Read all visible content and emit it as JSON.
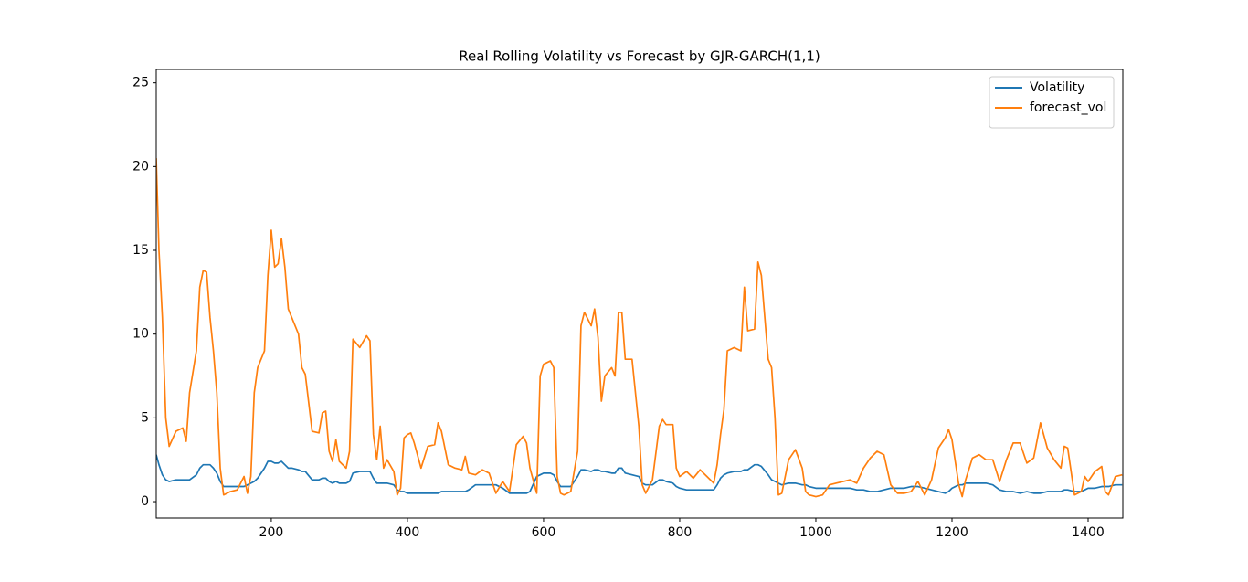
{
  "chart_data": {
    "type": "line",
    "title": "Real Rolling Volatility vs Forecast by GJR-GARCH(1,1)",
    "xlim": [
      31,
      1451
    ],
    "ylim": [
      -0.98,
      25.8
    ],
    "xticks": [
      200,
      400,
      600,
      800,
      1000,
      1200,
      1400
    ],
    "yticks": [
      0,
      5,
      10,
      15,
      20,
      25
    ],
    "legend": "upper right",
    "x": [
      31,
      35,
      40,
      45,
      50,
      60,
      70,
      75,
      80,
      90,
      95,
      100,
      105,
      110,
      115,
      120,
      125,
      130,
      140,
      150,
      160,
      165,
      170,
      175,
      180,
      190,
      195,
      200,
      205,
      210,
      215,
      220,
      225,
      230,
      240,
      245,
      250,
      260,
      270,
      275,
      280,
      285,
      290,
      295,
      300,
      310,
      315,
      320,
      330,
      340,
      345,
      350,
      355,
      360,
      365,
      370,
      380,
      385,
      390,
      395,
      400,
      405,
      410,
      420,
      430,
      440,
      445,
      450,
      460,
      470,
      480,
      485,
      490,
      500,
      510,
      520,
      530,
      540,
      550,
      560,
      570,
      575,
      580,
      590,
      595,
      600,
      610,
      615,
      620,
      625,
      630,
      640,
      650,
      655,
      660,
      670,
      675,
      680,
      685,
      690,
      700,
      705,
      710,
      715,
      720,
      730,
      740,
      745,
      750,
      760,
      770,
      775,
      780,
      790,
      795,
      800,
      810,
      820,
      830,
      840,
      850,
      855,
      860,
      865,
      870,
      880,
      890,
      895,
      900,
      910,
      915,
      920,
      930,
      935,
      940,
      945,
      950,
      960,
      965,
      970,
      980,
      985,
      990,
      1000,
      1010,
      1020,
      1030,
      1040,
      1050,
      1060,
      1070,
      1080,
      1090,
      1100,
      1110,
      1120,
      1130,
      1140,
      1150,
      1160,
      1170,
      1180,
      1190,
      1195,
      1200,
      1210,
      1215,
      1220,
      1230,
      1240,
      1250,
      1260,
      1270,
      1280,
      1290,
      1300,
      1310,
      1320,
      1330,
      1340,
      1350,
      1360,
      1365,
      1370,
      1380,
      1390,
      1395,
      1400,
      1410,
      1420,
      1425,
      1430,
      1440,
      1450
    ],
    "series": [
      {
        "name": "Volatility",
        "color": "#1f77b4",
        "values": [
          2.8,
          2.2,
          1.6,
          1.3,
          1.2,
          1.3,
          1.3,
          1.3,
          1.3,
          1.6,
          2.0,
          2.2,
          2.2,
          2.2,
          2.0,
          1.7,
          1.2,
          0.9,
          0.9,
          0.9,
          0.9,
          1.0,
          1.1,
          1.2,
          1.4,
          2.0,
          2.4,
          2.4,
          2.3,
          2.3,
          2.4,
          2.2,
          2.0,
          2.0,
          1.9,
          1.8,
          1.8,
          1.3,
          1.3,
          1.4,
          1.4,
          1.2,
          1.1,
          1.2,
          1.1,
          1.1,
          1.2,
          1.7,
          1.8,
          1.8,
          1.8,
          1.4,
          1.1,
          1.1,
          1.1,
          1.1,
          1.0,
          0.7,
          0.6,
          0.6,
          0.5,
          0.5,
          0.5,
          0.5,
          0.5,
          0.5,
          0.5,
          0.6,
          0.6,
          0.6,
          0.6,
          0.6,
          0.7,
          1.0,
          1.0,
          1.0,
          1.0,
          0.8,
          0.5,
          0.5,
          0.5,
          0.5,
          0.6,
          1.5,
          1.6,
          1.7,
          1.7,
          1.6,
          1.2,
          0.9,
          0.9,
          0.9,
          1.5,
          1.9,
          1.9,
          1.8,
          1.9,
          1.9,
          1.8,
          1.8,
          1.7,
          1.7,
          2.0,
          2.0,
          1.7,
          1.6,
          1.5,
          1.1,
          1.0,
          1.0,
          1.3,
          1.3,
          1.2,
          1.1,
          0.9,
          0.8,
          0.7,
          0.7,
          0.7,
          0.7,
          0.7,
          1.0,
          1.4,
          1.6,
          1.7,
          1.8,
          1.8,
          1.9,
          1.9,
          2.2,
          2.2,
          2.1,
          1.6,
          1.3,
          1.2,
          1.1,
          1.0,
          1.1,
          1.1,
          1.1,
          1.0,
          1.0,
          0.9,
          0.8,
          0.8,
          0.8,
          0.8,
          0.8,
          0.8,
          0.7,
          0.7,
          0.6,
          0.6,
          0.7,
          0.8,
          0.8,
          0.8,
          0.9,
          0.9,
          0.8,
          0.7,
          0.6,
          0.5,
          0.6,
          0.8,
          1.0,
          1.0,
          1.1,
          1.1,
          1.1,
          1.1,
          1.0,
          0.7,
          0.6,
          0.6,
          0.5,
          0.6,
          0.5,
          0.5,
          0.6,
          0.6,
          0.6,
          0.7,
          0.7,
          0.6,
          0.6,
          0.7,
          0.8,
          0.8,
          0.9,
          0.9,
          0.9,
          1.0,
          1.0
        ]
      },
      {
        "name": "forecast_vol",
        "color": "#ff7f0e",
        "values": [
          20.5,
          15,
          11,
          5,
          3.3,
          4.2,
          4.4,
          3.6,
          6.5,
          9,
          12.8,
          13.8,
          13.7,
          11,
          9,
          6.5,
          2,
          0.4,
          0.6,
          0.7,
          1.5,
          0.5,
          1.5,
          6.5,
          8,
          9,
          13.5,
          16.2,
          14,
          14.2,
          15.7,
          14,
          11.5,
          11,
          10,
          8,
          7.6,
          4.2,
          4.1,
          5.3,
          5.4,
          3,
          2.4,
          3.7,
          2.4,
          2,
          3,
          9.7,
          9.2,
          9.9,
          9.6,
          4,
          2.5,
          4.5,
          2,
          2.5,
          1.8,
          0.4,
          0.8,
          3.8,
          4,
          4.1,
          3.5,
          2,
          3.3,
          3.4,
          4.7,
          4.2,
          2.2,
          2,
          1.9,
          2.7,
          1.7,
          1.6,
          1.9,
          1.7,
          0.5,
          1.2,
          0.6,
          3.4,
          3.9,
          3.5,
          2,
          0.5,
          7.5,
          8.2,
          8.4,
          8.0,
          1.5,
          0.5,
          0.4,
          0.6,
          3,
          10.5,
          11.3,
          10.5,
          11.5,
          9.8,
          6,
          7.5,
          8,
          7.5,
          11.3,
          11.3,
          8.5,
          8.5,
          4.5,
          1,
          0.5,
          1.3,
          4.5,
          4.9,
          4.6,
          4.6,
          2,
          1.5,
          1.8,
          1.4,
          1.9,
          1.5,
          1.1,
          2.2,
          4,
          5.5,
          9.0,
          9.2,
          9.0,
          12.8,
          10.2,
          10.3,
          14.3,
          13.5,
          8.5,
          8.0,
          5,
          0.4,
          0.5,
          2.5,
          2.8,
          3.1,
          2,
          0.6,
          0.4,
          0.3,
          0.4,
          1,
          1.1,
          1.2,
          1.3,
          1.1,
          2,
          2.6,
          3,
          2.8,
          1,
          0.5,
          0.5,
          0.6,
          1.2,
          0.4,
          1.3,
          3.2,
          3.8,
          4.3,
          3.7,
          1,
          0.3,
          1.3,
          2.6,
          2.8,
          2.5,
          2.5,
          1.2,
          2.5,
          3.5,
          3.5,
          2.3,
          2.6,
          4.7,
          3.2,
          2.5,
          2,
          3.3,
          3.2,
          0.4,
          0.6,
          1.5,
          1.2,
          1.8,
          2.1,
          0.6,
          0.4,
          1.5,
          1.6
        ]
      }
    ]
  }
}
